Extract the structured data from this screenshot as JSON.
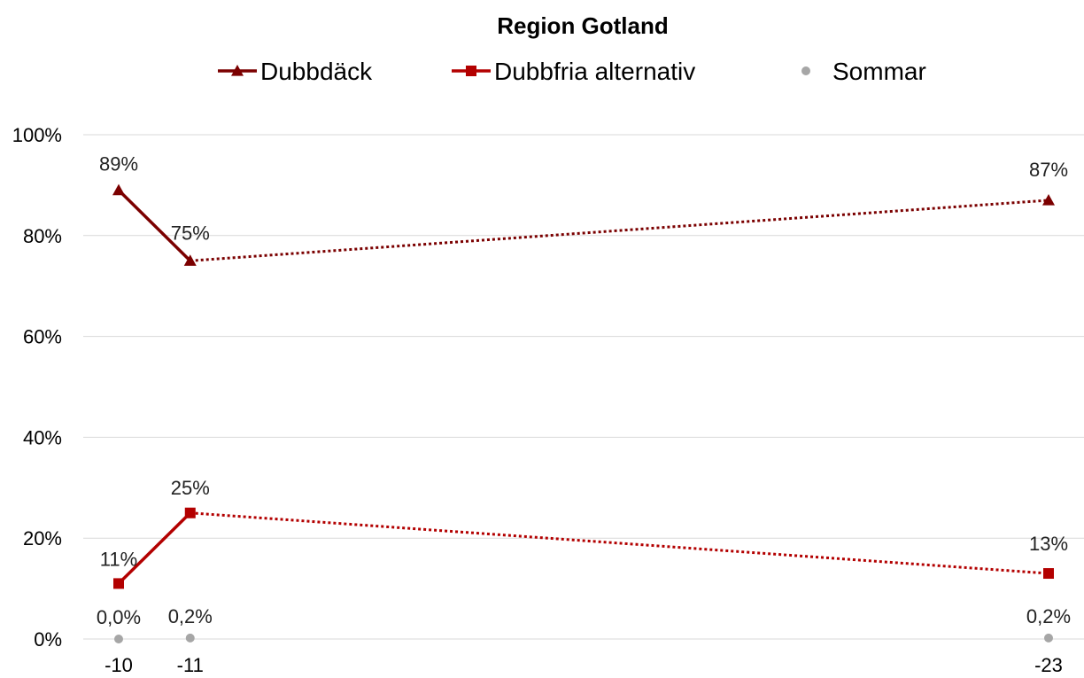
{
  "chart_data": {
    "type": "line",
    "title": "Region Gotland",
    "x_categories": [
      "-10",
      "-11",
      "-23"
    ],
    "x_numeric": [
      10,
      11,
      23
    ],
    "ylim": [
      0,
      100
    ],
    "y_ticks": [
      "0%",
      "20%",
      "40%",
      "60%",
      "80%",
      "100%"
    ],
    "y_tick_values": [
      0,
      20,
      40,
      60,
      80,
      100
    ],
    "grid": true,
    "legend_position": "top",
    "series": [
      {
        "name": "Dubbdäck",
        "color": "#7b0000",
        "marker": "triangle",
        "values": [
          89,
          75,
          87
        ],
        "labels": [
          "89%",
          "75%",
          "87%"
        ],
        "dotted_from_index": 1
      },
      {
        "name": "Dubbfria alternativ",
        "color": "#b30000",
        "marker": "square",
        "values": [
          11,
          25,
          13
        ],
        "labels": [
          "11%",
          "25%",
          "13%"
        ],
        "dotted_from_index": 1
      },
      {
        "name": "Sommar",
        "color": "#a6a6a6",
        "marker": "circle",
        "values": [
          0.0,
          0.2,
          0.2
        ],
        "labels": [
          "0,0%",
          "0,2%",
          "0,2%"
        ],
        "dotted_from_index": null
      }
    ]
  }
}
